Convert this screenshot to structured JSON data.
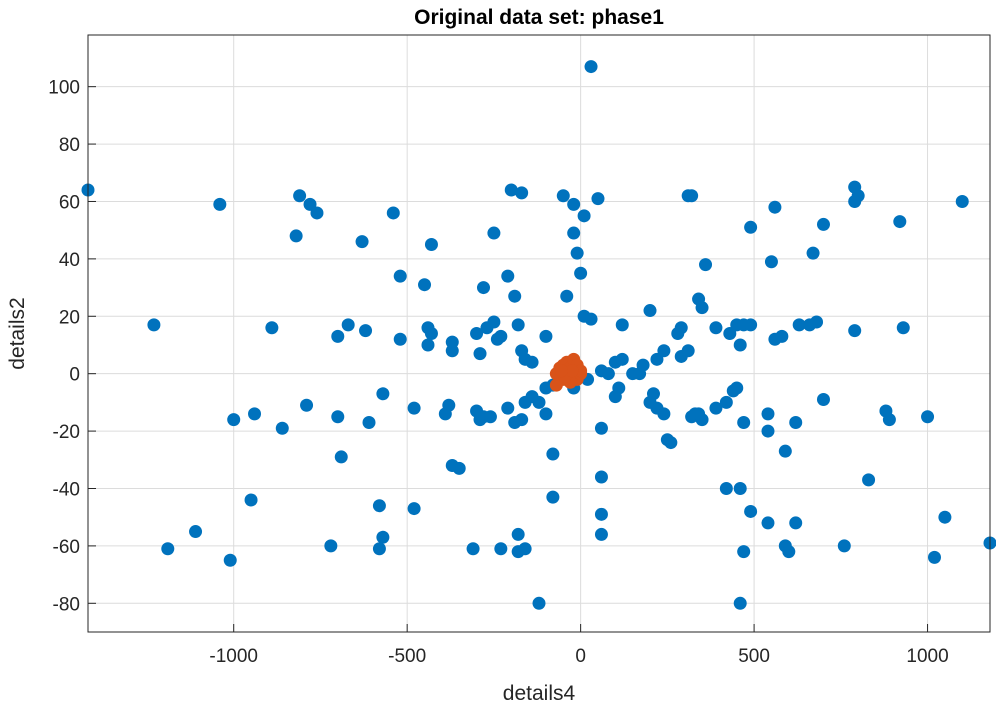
{
  "chart_data": {
    "type": "scatter",
    "title": "Original data set: phase1",
    "xlabel": "details4",
    "ylabel": "details2",
    "xlim": [
      -1420,
      1180
    ],
    "ylim": [
      -90,
      118
    ],
    "xticks": [
      -1000,
      -500,
      0,
      500,
      1000
    ],
    "yticks": [
      -80,
      -60,
      -40,
      -20,
      0,
      20,
      40,
      60,
      80,
      100
    ],
    "grid": true,
    "colors": {
      "series1": "#0072bd",
      "series2": "#d95319"
    },
    "series": [
      {
        "points": [
          [
            -1420,
            64
          ],
          [
            -1040,
            59
          ],
          [
            -810,
            62
          ],
          [
            -780,
            59
          ],
          [
            -760,
            56
          ],
          [
            -820,
            48
          ],
          [
            -630,
            46
          ],
          [
            -540,
            56
          ],
          [
            -430,
            45
          ],
          [
            -250,
            49
          ],
          [
            -200,
            64
          ],
          [
            -170,
            63
          ],
          [
            -50,
            62
          ],
          [
            -20,
            59
          ],
          [
            10,
            55
          ],
          [
            50,
            61
          ],
          [
            310,
            62
          ],
          [
            320,
            62
          ],
          [
            560,
            58
          ],
          [
            790,
            65
          ],
          [
            800,
            62
          ],
          [
            790,
            60
          ],
          [
            1100,
            60
          ],
          [
            -1230,
            17
          ],
          [
            -890,
            16
          ],
          [
            -700,
            13
          ],
          [
            -670,
            17
          ],
          [
            -620,
            15
          ],
          [
            -520,
            12
          ],
          [
            -520,
            34
          ],
          [
            -450,
            31
          ],
          [
            -440,
            16
          ],
          [
            -440,
            10
          ],
          [
            -430,
            14
          ],
          [
            -370,
            11
          ],
          [
            -370,
            8
          ],
          [
            -300,
            14
          ],
          [
            -290,
            7
          ],
          [
            -280,
            30
          ],
          [
            -270,
            16
          ],
          [
            -250,
            18
          ],
          [
            -240,
            12
          ],
          [
            -230,
            13
          ],
          [
            -210,
            34
          ],
          [
            -190,
            27
          ],
          [
            -180,
            17
          ],
          [
            -170,
            8
          ],
          [
            -160,
            5
          ],
          [
            -140,
            4
          ],
          [
            -100,
            13
          ],
          [
            -40,
            27
          ],
          [
            0,
            35
          ],
          [
            -10,
            42
          ],
          [
            -20,
            49
          ],
          [
            10,
            20
          ],
          [
            30,
            19
          ],
          [
            120,
            17
          ],
          [
            200,
            22
          ],
          [
            220,
            5
          ],
          [
            240,
            8
          ],
          [
            280,
            14
          ],
          [
            290,
            16
          ],
          [
            290,
            6
          ],
          [
            310,
            8
          ],
          [
            340,
            26
          ],
          [
            350,
            23
          ],
          [
            360,
            38
          ],
          [
            390,
            16
          ],
          [
            430,
            14
          ],
          [
            450,
            17
          ],
          [
            460,
            10
          ],
          [
            470,
            17
          ],
          [
            490,
            17
          ],
          [
            490,
            51
          ],
          [
            550,
            39
          ],
          [
            560,
            12
          ],
          [
            580,
            13
          ],
          [
            630,
            17
          ],
          [
            660,
            17
          ],
          [
            670,
            42
          ],
          [
            680,
            18
          ],
          [
            700,
            52
          ],
          [
            790,
            15
          ],
          [
            920,
            53
          ],
          [
            930,
            16
          ],
          [
            180,
            3
          ],
          [
            150,
            0
          ],
          [
            100,
            4
          ],
          [
            120,
            5
          ],
          [
            60,
            1
          ],
          [
            80,
            0
          ],
          [
            -1000,
            -16
          ],
          [
            -940,
            -14
          ],
          [
            -860,
            -19
          ],
          [
            -790,
            -11
          ],
          [
            -700,
            -15
          ],
          [
            -610,
            -17
          ],
          [
            -570,
            -7
          ],
          [
            -480,
            -12
          ],
          [
            -390,
            -14
          ],
          [
            -380,
            -11
          ],
          [
            -300,
            -13
          ],
          [
            -290,
            -16
          ],
          [
            -280,
            -15
          ],
          [
            -260,
            -15
          ],
          [
            -210,
            -12
          ],
          [
            -190,
            -17
          ],
          [
            -170,
            -16
          ],
          [
            -160,
            -10
          ],
          [
            -140,
            -8
          ],
          [
            -120,
            -10
          ],
          [
            -100,
            -14
          ],
          [
            -100,
            -5
          ],
          [
            -80,
            -4
          ],
          [
            -20,
            -5
          ],
          [
            20,
            -2
          ],
          [
            60,
            -19
          ],
          [
            100,
            -8
          ],
          [
            110,
            -5
          ],
          [
            170,
            0
          ],
          [
            200,
            -10
          ],
          [
            210,
            -7
          ],
          [
            220,
            -12
          ],
          [
            240,
            -14
          ],
          [
            250,
            -23
          ],
          [
            260,
            -24
          ],
          [
            320,
            -15
          ],
          [
            330,
            -14
          ],
          [
            340,
            -14
          ],
          [
            350,
            -16
          ],
          [
            390,
            -12
          ],
          [
            420,
            -10
          ],
          [
            440,
            -6
          ],
          [
            450,
            -5
          ],
          [
            470,
            -17
          ],
          [
            540,
            -14
          ],
          [
            540,
            -20
          ],
          [
            590,
            -27
          ],
          [
            620,
            -17
          ],
          [
            700,
            -9
          ],
          [
            880,
            -13
          ],
          [
            890,
            -16
          ],
          [
            1000,
            -15
          ],
          [
            -950,
            -44
          ],
          [
            -690,
            -29
          ],
          [
            -580,
            -46
          ],
          [
            -580,
            -61
          ],
          [
            -570,
            -57
          ],
          [
            -480,
            -47
          ],
          [
            -370,
            -32
          ],
          [
            -350,
            -33
          ],
          [
            -310,
            -61
          ],
          [
            -230,
            -61
          ],
          [
            -180,
            -56
          ],
          [
            -180,
            -62
          ],
          [
            -160,
            -61
          ],
          [
            -120,
            -80
          ],
          [
            -80,
            -43
          ],
          [
            -80,
            -28
          ],
          [
            60,
            -36
          ],
          [
            60,
            -49
          ],
          [
            60,
            -56
          ],
          [
            420,
            -40
          ],
          [
            460,
            -40
          ],
          [
            470,
            -62
          ],
          [
            460,
            -80
          ],
          [
            490,
            -48
          ],
          [
            540,
            -52
          ],
          [
            620,
            -52
          ],
          [
            590,
            -60
          ],
          [
            600,
            -62
          ],
          [
            760,
            -60
          ],
          [
            830,
            -37
          ],
          [
            1020,
            -64
          ],
          [
            1050,
            -50
          ],
          [
            1180,
            -59
          ],
          [
            -1010,
            -65
          ],
          [
            -1190,
            -61
          ],
          [
            -1110,
            -55
          ],
          [
            -720,
            -60
          ],
          [
            30,
            107
          ]
        ]
      },
      {
        "points": [
          [
            -60,
            2
          ],
          [
            -50,
            3
          ],
          [
            -40,
            1
          ],
          [
            -40,
            4
          ],
          [
            -30,
            -1
          ],
          [
            -30,
            2
          ],
          [
            -20,
            0
          ],
          [
            -20,
            5
          ],
          [
            -10,
            -2
          ],
          [
            -10,
            3
          ],
          [
            0,
            0
          ],
          [
            0,
            1
          ],
          [
            -50,
            -2
          ],
          [
            -60,
            -1
          ],
          [
            -30,
            -3
          ],
          [
            -70,
            -4
          ],
          [
            -70,
            0
          ],
          [
            -45,
            -1
          ],
          [
            -25,
            1
          ],
          [
            -55,
            1
          ]
        ]
      }
    ]
  }
}
